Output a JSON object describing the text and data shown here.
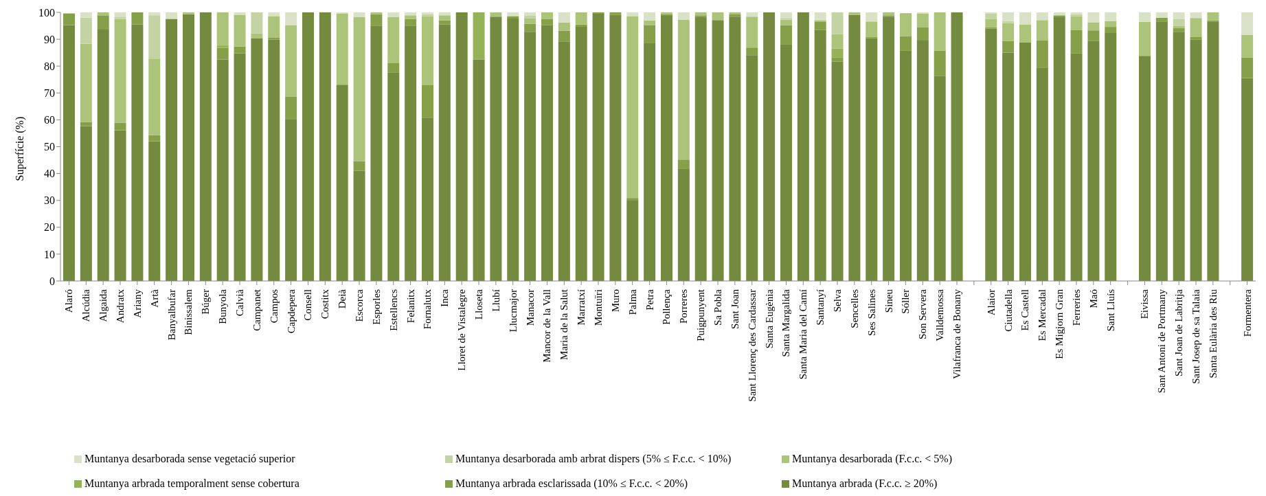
{
  "chart_data": {
    "type": "bar",
    "stacked": true,
    "ylabel": "Superfície (%)",
    "ylim": [
      0,
      100
    ],
    "yticks": [
      0,
      10,
      20,
      30,
      40,
      50,
      60,
      70,
      80,
      90,
      100
    ],
    "grid": false,
    "legend": "bottom",
    "categories": [
      "Alaró",
      "Alcúdia",
      "Algaida",
      "Andratx",
      "Ariany",
      "Artà",
      "Banyalbufar",
      "Binissalem",
      "Búger",
      "Bunyola",
      "Calvià",
      "Campanet",
      "Campos",
      "Capdepera",
      "Consell",
      "Costitx",
      "Deià",
      "Escorca",
      "Esporles",
      "Estellencs",
      "Felanitx",
      "Fornalutx",
      "Inca",
      "Lloret de Vistalegre",
      "Lloseta",
      "Llubí",
      "Llucmajor",
      "Manacor",
      "Mancor de la Vall",
      "Maria de la Salut",
      "Marratxí",
      "Montuïri",
      "Muro",
      "Palma",
      "Petra",
      "Pollença",
      "Porreres",
      "Puigpunyent",
      "Sa Pobla",
      "Sant Joan",
      "Sant Llorenç des Cardassar",
      "Santa Eugènia",
      "Santa Margalida",
      "Santa Maria del Camí",
      "Santanyí",
      "Selva",
      "Sencelles",
      "Ses Salines",
      "Sineu",
      "Sóller",
      "Son Servera",
      "Valldemossa",
      "Vilafranca de Bonany",
      null,
      "Alaior",
      "Ciutadella",
      "Es Castell",
      "Es Mercadal",
      "Es Migjorn Gran",
      "Ferreries",
      "Maó",
      "Sant Lluís",
      null,
      "Eivissa",
      "Sant Antoni de Portmany",
      "Sant Joan de Labritja",
      "Sant Josep de sa Talaia",
      "Santa Eulària des Riu",
      null,
      "Formentera"
    ],
    "series": [
      {
        "name": "Muntanya arbrada (F.c.c. ≥ 20%)",
        "color": "#738a3f",
        "values": [
          95.3,
          57.7,
          93.6,
          56.1,
          95.5,
          52.0,
          97.6,
          99.3,
          100,
          82.5,
          84.8,
          90.4,
          89.9,
          60.1,
          100,
          100,
          73.1,
          41.0,
          95.1,
          77.7,
          95.1,
          60.8,
          95.5,
          100,
          82.5,
          98.4,
          97.7,
          92.8,
          95.2,
          89.2,
          94.6,
          99.5,
          99.2,
          29.9,
          88.5,
          98.7,
          41.7,
          98.4,
          97.1,
          98.4,
          84.1,
          100,
          88.0,
          100,
          93.4,
          81.7,
          99.1,
          90.4,
          98.4,
          85.9,
          89.5,
          76.4,
          100,
          null,
          94.0,
          85.0,
          88.9,
          79.3,
          98.2,
          84.7,
          89.3,
          92.3,
          null,
          83.8,
          96.6,
          92.8,
          89.8,
          96.6,
          null,
          75.6
        ]
      },
      {
        "name": "Muntanya arbrada esclarissada (10% ≤ F.c.c. < 20%)",
        "color": "#86a04a",
        "values": [
          4.3,
          1.5,
          5.3,
          2.8,
          4.5,
          2.3,
          0,
          0,
          0,
          4.3,
          2.5,
          0,
          0.8,
          8.6,
          0,
          0,
          0,
          3.6,
          4.2,
          3.4,
          2.4,
          12.1,
          1.5,
          0,
          0,
          0,
          0.9,
          2.9,
          2.4,
          4.0,
          0.9,
          0.5,
          0.8,
          1.0,
          6.8,
          0.6,
          3.5,
          0.5,
          0,
          1.0,
          2.8,
          0,
          7.2,
          0,
          3.2,
          1.6,
          0,
          0.4,
          0.5,
          5.2,
          4.9,
          9.4,
          0,
          null,
          0.4,
          4.3,
          0,
          10.2,
          0.7,
          8.8,
          4.0,
          2.3,
          null,
          0,
          1.4,
          1.3,
          1.0,
          0.4,
          null,
          7.6
        ]
      },
      {
        "name": "Muntanya arbrada temporalment sense cobertura",
        "color": "#96b256",
        "values": [
          0,
          0,
          0,
          0,
          0,
          0,
          0,
          0,
          0,
          0.9,
          0,
          0,
          0,
          0,
          0,
          0,
          0,
          0,
          0,
          0,
          0,
          0,
          0,
          0,
          17.5,
          0,
          0,
          0,
          0,
          0,
          0,
          0,
          0,
          0,
          0,
          0,
          0,
          0,
          0,
          0,
          0,
          0,
          0,
          0,
          0,
          3.2,
          0,
          0,
          0,
          0,
          0,
          0,
          0,
          null,
          0,
          0,
          0,
          0,
          0,
          0,
          0,
          0,
          null,
          0,
          0,
          0,
          0,
          0,
          null,
          0
        ]
      },
      {
        "name": "Muntanya desarborada (F.c.c. < 5%)",
        "color": "#abc47a",
        "values": [
          0,
          29.1,
          1.1,
          38.7,
          0,
          28.5,
          0,
          0.7,
          0,
          12.3,
          11.8,
          1.8,
          7.9,
          26.6,
          0,
          0,
          26.4,
          53.6,
          0.7,
          17.1,
          1.4,
          25.7,
          1.9,
          0,
          0,
          1.6,
          0,
          2.0,
          2.4,
          3.0,
          4.5,
          0,
          0,
          67.7,
          1.7,
          0.7,
          52.1,
          1.1,
          2.9,
          0.6,
          11.5,
          0,
          2.1,
          0,
          0.5,
          5.4,
          0.9,
          5.8,
          1.1,
          8.6,
          5.1,
          14.2,
          0,
          null,
          3.2,
          6.7,
          6.5,
          7.6,
          0,
          5.1,
          3.0,
          2.2,
          null,
          12.7,
          0,
          0.8,
          7.1,
          3.0,
          null,
          8.4
        ]
      },
      {
        "name": "Muntanya desarborada amb arbrat dispers (5% ≤ F.c.c. < 10%)",
        "color": "#c4d3a3",
        "values": [
          0,
          9.7,
          0,
          0.6,
          0,
          16.1,
          0,
          0,
          0,
          0,
          0,
          7.8,
          0,
          0,
          0,
          0,
          0,
          0,
          0,
          0,
          0,
          0.7,
          0,
          0,
          0,
          0,
          0,
          1.2,
          0,
          0,
          0,
          0,
          0,
          0,
          0,
          0,
          0,
          0,
          0,
          0,
          0,
          0,
          0.6,
          0,
          0,
          8.1,
          0,
          0,
          0,
          0,
          0,
          0,
          0,
          null,
          1.9,
          0.8,
          0,
          0,
          0,
          0.7,
          0,
          0,
          null,
          0,
          0,
          2.7,
          0,
          0,
          null,
          0
        ]
      },
      {
        "name": "Muntanya desarborada sense vegetació superior",
        "color": "#d9e2c6",
        "values": [
          null,
          2.0,
          0,
          1.8,
          0,
          1.1,
          2.4,
          0,
          0,
          0,
          0.9,
          0,
          1.4,
          4.7,
          0,
          0,
          0.5,
          1.8,
          0,
          1.8,
          1.1,
          0.7,
          1.1,
          0,
          0,
          0,
          1.4,
          1.1,
          0,
          3.8,
          0,
          0,
          0,
          1.4,
          3.0,
          0,
          2.7,
          0,
          0,
          0,
          1.6,
          0,
          2.1,
          0,
          2.9,
          0,
          0,
          3.4,
          0,
          null,
          0.5,
          0,
          0,
          null,
          0.5,
          3.2,
          4.6,
          2.9,
          1.1,
          0.7,
          3.7,
          3.2,
          null,
          3.5,
          2.0,
          2.4,
          2.1,
          0,
          null,
          8.4
        ]
      }
    ]
  }
}
